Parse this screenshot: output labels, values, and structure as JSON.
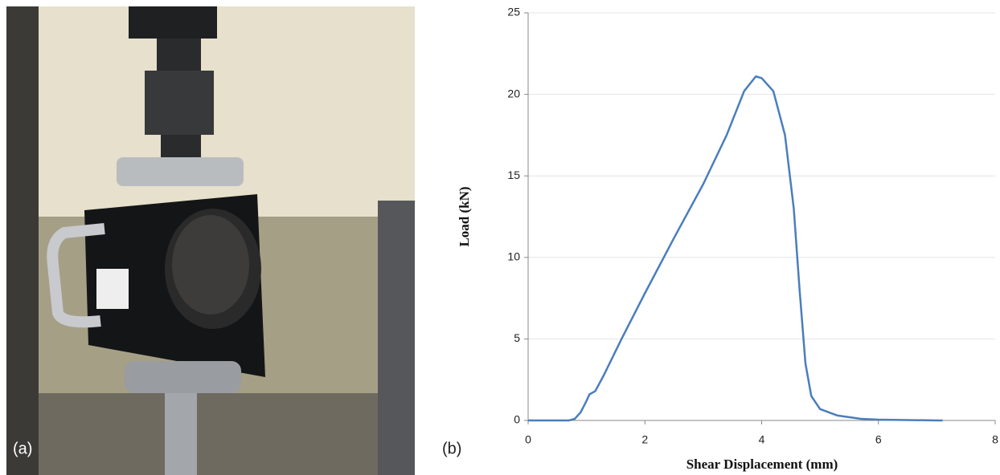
{
  "panel_labels": [
    "(a)",
    "(b)"
  ],
  "chart_data": {
    "type": "line",
    "xlabel": "Shear Displacement (mm)",
    "ylabel": "Load (kN)",
    "xlim": [
      0,
      8
    ],
    "xticks": [
      0,
      2,
      4,
      6,
      8
    ],
    "ylim": [
      0,
      25
    ],
    "yticks": [
      0,
      5,
      10,
      15,
      20,
      25
    ],
    "grid": true,
    "x": [
      0,
      0.7,
      0.8,
      0.9,
      1.0,
      1.05,
      1.15,
      1.3,
      1.6,
      2.0,
      2.5,
      3.0,
      3.4,
      3.7,
      3.9,
      4.0,
      4.2,
      4.4,
      4.55,
      4.65,
      4.75,
      4.85,
      5.0,
      5.3,
      5.7,
      6.0,
      7.0,
      7.1
    ],
    "series": [
      {
        "color": "#4a7ebb",
        "values": [
          0,
          0,
          0.1,
          0.5,
          1.2,
          1.6,
          1.8,
          2.8,
          5,
          7.8,
          11.2,
          14.5,
          17.5,
          20.2,
          21.1,
          21.0,
          20.2,
          17.5,
          13,
          8,
          3.5,
          1.5,
          0.7,
          0.3,
          0.1,
          0.05,
          0,
          0
        ]
      }
    ]
  }
}
